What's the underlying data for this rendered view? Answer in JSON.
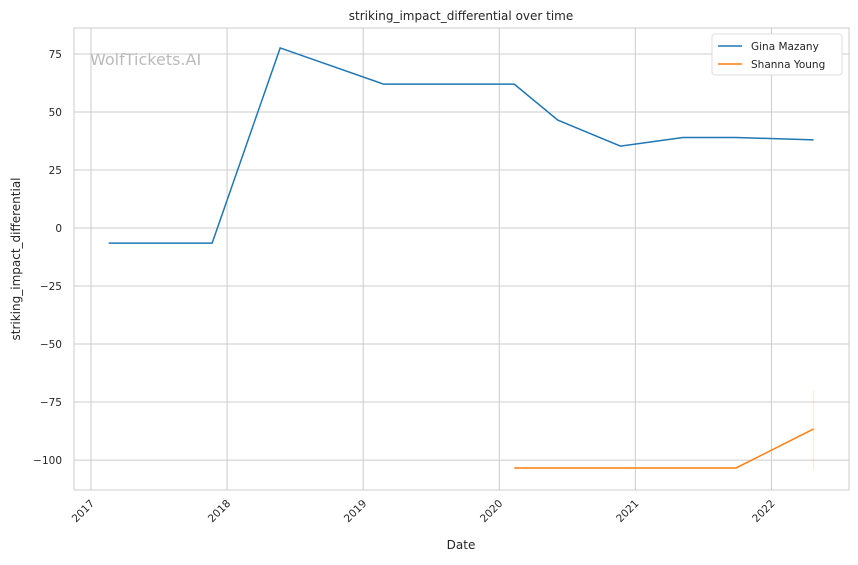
{
  "chart_data": {
    "type": "line",
    "title": "striking_impact_differential over time",
    "xlabel": "Date",
    "ylabel": "striking_impact_differential",
    "watermark": "WolfTickets.AI",
    "xlim": [
      2016.875,
      2022.57
    ],
    "ylim": [
      -112.9,
      86.2
    ],
    "x_ticks": [
      2017,
      2018,
      2019,
      2020,
      2021,
      2022
    ],
    "x_tick_labels": [
      "2017",
      "2018",
      "2019",
      "2020",
      "2021",
      "2022"
    ],
    "y_ticks": [
      75,
      50,
      25,
      0,
      -25,
      -50,
      -75,
      -100
    ],
    "y_tick_labels": [
      "75",
      "50",
      "25",
      "0",
      "−25",
      "−50",
      "−75",
      "−100"
    ],
    "grid": true,
    "legend": "top-right",
    "series": [
      {
        "name": "Gina Mazany",
        "color": "#1f77b4",
        "x": [
          2017.13,
          2017.89,
          2018.39,
          2019.15,
          2020.11,
          2020.43,
          2020.89,
          2021.35,
          2021.74,
          2022.31
        ],
        "y": [
          -6.5,
          -6.5,
          77.6,
          62,
          62,
          46.5,
          35.3,
          39,
          39,
          38
        ]
      },
      {
        "name": "Shanna Young",
        "color": "#ff7f0e",
        "x": [
          2020.11,
          2021.74,
          2022.31
        ],
        "y": [
          -103.4,
          -103.4,
          -86.6
        ],
        "band": {
          "x": 2022.31,
          "low": -104,
          "high": -70
        }
      }
    ]
  }
}
